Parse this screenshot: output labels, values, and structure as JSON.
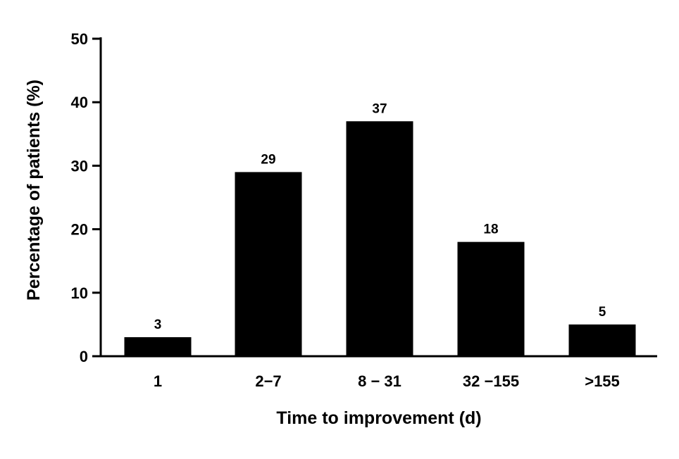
{
  "chart_data": {
    "type": "bar",
    "categories": [
      "1",
      "2−7",
      "8 − 31",
      "32 −155",
      ">155"
    ],
    "values": [
      3,
      29,
      37,
      18,
      5
    ],
    "data_labels": [
      "3",
      "29",
      "37",
      "18",
      "5"
    ],
    "xlabel": "Time to improvement (d)",
    "ylabel": "Percentage of patients (%)",
    "ylim": [
      0,
      50
    ],
    "yticks": [
      0,
      10,
      20,
      30,
      40,
      50
    ],
    "grid": false,
    "legend": "none",
    "bar_color": "#000000"
  }
}
